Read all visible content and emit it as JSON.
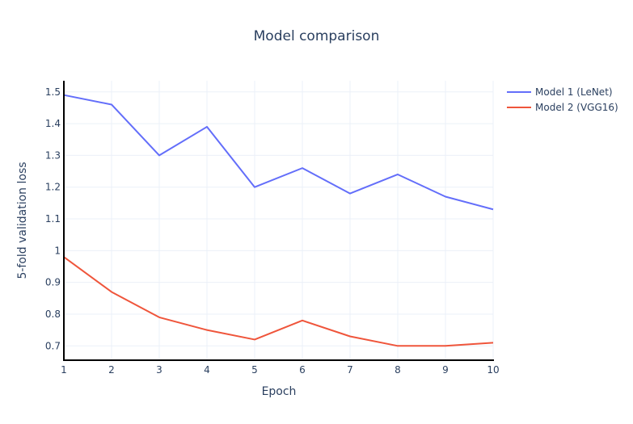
{
  "chart_data": {
    "type": "line",
    "title": "Model comparison",
    "xlabel": "Epoch",
    "ylabel": "5-fold validation loss",
    "x": [
      1,
      2,
      3,
      4,
      5,
      6,
      7,
      8,
      9,
      10
    ],
    "xlim": [
      1,
      10
    ],
    "ylim": [
      0.655,
      1.535
    ],
    "x_ticks": [
      "1",
      "2",
      "3",
      "4",
      "5",
      "6",
      "7",
      "8",
      "9",
      "10"
    ],
    "y_ticks": [
      0.7,
      0.8,
      0.9,
      1,
      1.1,
      1.2,
      1.3,
      1.4,
      1.5
    ],
    "y_tick_labels": [
      "0.7",
      "0.8",
      "0.9",
      "1",
      "1.1",
      "1.2",
      "1.3",
      "1.4",
      "1.5"
    ],
    "grid": true,
    "legend_position": "top-right",
    "series": [
      {
        "name": "Model 1 (LeNet)",
        "color": "#636efa",
        "values": [
          1.49,
          1.46,
          1.3,
          1.39,
          1.2,
          1.26,
          1.18,
          1.24,
          1.17,
          1.13
        ]
      },
      {
        "name": "Model 2 (VGG16)",
        "color": "#ef553b",
        "values": [
          0.98,
          0.87,
          0.79,
          0.75,
          0.72,
          0.78,
          0.73,
          0.7,
          0.7,
          0.71
        ]
      }
    ]
  }
}
